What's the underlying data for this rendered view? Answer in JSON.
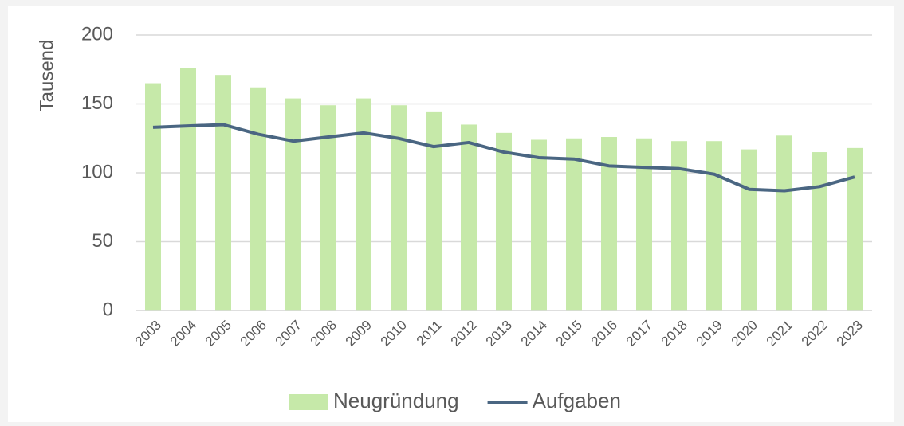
{
  "chart_data": {
    "type": "combo",
    "y_label": "Tausend",
    "categories": [
      "2003",
      "2004",
      "2005",
      "2006",
      "2007",
      "2008",
      "2009",
      "2010",
      "2011",
      "2012",
      "2013",
      "2014",
      "2015",
      "2016",
      "2017",
      "2018",
      "2019",
      "2020",
      "2021",
      "2022",
      "2023"
    ],
    "series": [
      {
        "name": "Neugründung",
        "type": "bar",
        "color": "#c6e9a9",
        "values": [
          165,
          176,
          171,
          162,
          154,
          149,
          154,
          149,
          144,
          135,
          129,
          124,
          125,
          126,
          125,
          123,
          123,
          117,
          127,
          115,
          118
        ]
      },
      {
        "name": "Aufgaben",
        "type": "line",
        "color": "#4a6682",
        "values": [
          133,
          134,
          135,
          128,
          123,
          126,
          129,
          125,
          119,
          122,
          115,
          111,
          110,
          105,
          104,
          103,
          99,
          88,
          87,
          90,
          97
        ]
      }
    ],
    "ylim": [
      0,
      200
    ],
    "yticks": [
      0,
      50,
      100,
      150,
      200
    ],
    "grid": true,
    "legend": "bottom"
  }
}
